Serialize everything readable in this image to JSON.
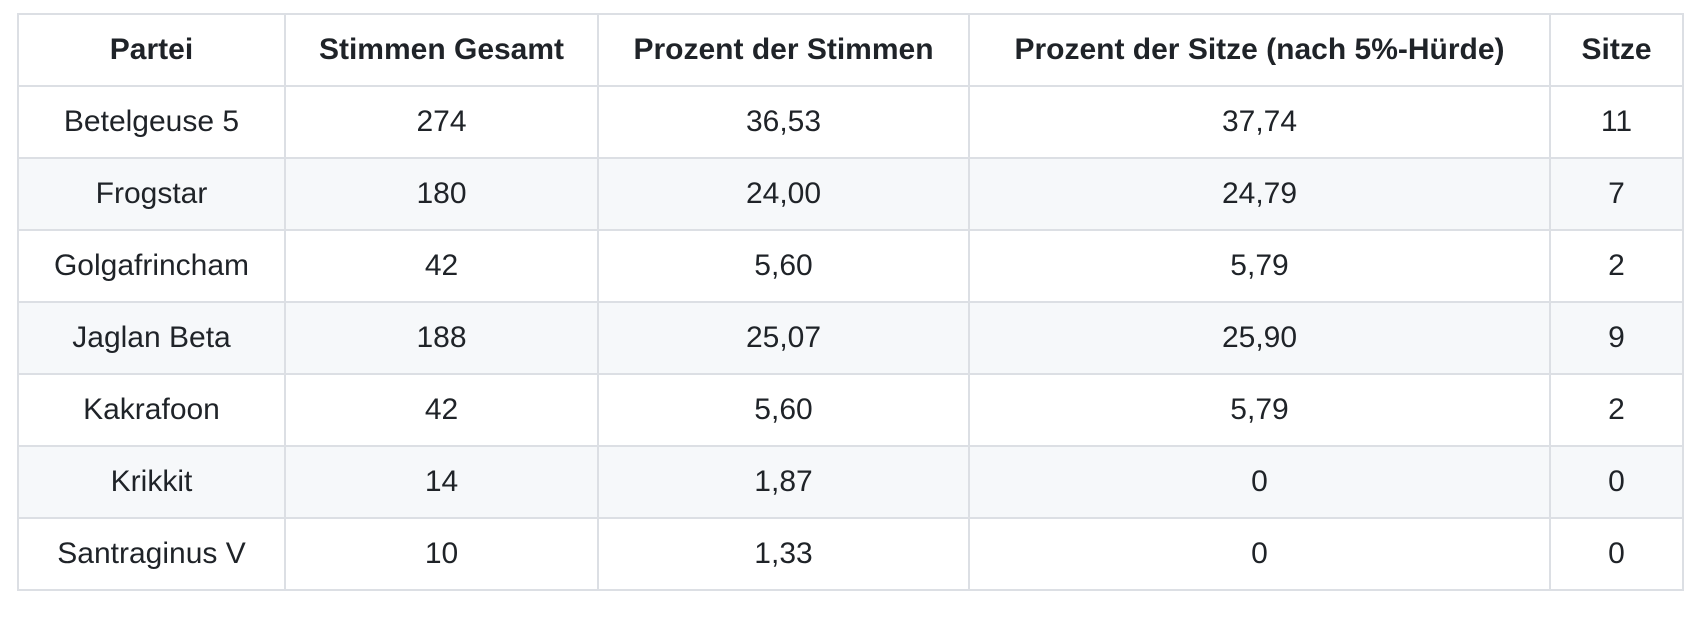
{
  "table": {
    "headers": [
      "Partei",
      "Stimmen Gesamt",
      "Prozent der Stimmen",
      "Prozent der Sitze (nach 5%-Hürde)",
      "Sitze"
    ],
    "rows": [
      [
        "Betelgeuse 5",
        "274",
        "36,53",
        "37,74",
        "11"
      ],
      [
        "Frogstar",
        "180",
        "24,00",
        "24,79",
        "7"
      ],
      [
        "Golgafrincham",
        "42",
        "5,60",
        "5,79",
        "2"
      ],
      [
        "Jaglan Beta",
        "188",
        "25,07",
        "25,90",
        "9"
      ],
      [
        "Kakrafoon",
        "42",
        "5,60",
        "5,79",
        "2"
      ],
      [
        "Krikkit",
        "14",
        "1,87",
        "0",
        "0"
      ],
      [
        "Santraginus V",
        "10",
        "1,33",
        "0",
        "0"
      ]
    ]
  },
  "colors": {
    "border": "#dcdfe4",
    "stripe": "#f6f8fa",
    "text": "#1f2328",
    "background": "#ffffff"
  }
}
